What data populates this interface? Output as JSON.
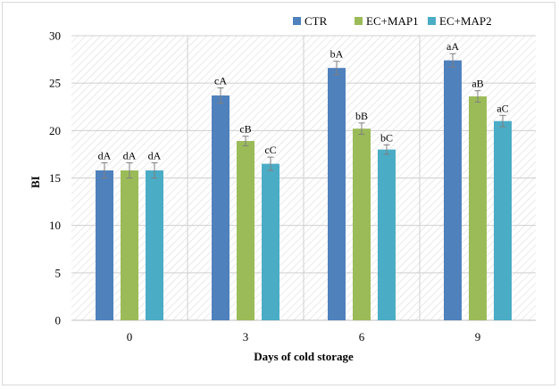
{
  "chart_data": {
    "type": "bar",
    "title": "",
    "xlabel": "Days of cold storage",
    "ylabel": "BI",
    "ylim": [
      0,
      30
    ],
    "yticks": [
      0,
      5,
      10,
      15,
      20,
      25,
      30
    ],
    "grid": true,
    "legend_position": "top-right",
    "categories": [
      "0",
      "3",
      "6",
      "9"
    ],
    "series": [
      {
        "name": "CTR",
        "color": "#4f81bd",
        "values": [
          15.8,
          23.7,
          26.6,
          27.4
        ],
        "errors": [
          0.8,
          0.8,
          0.7,
          0.7
        ],
        "labels": [
          "dA",
          "cA",
          "bA",
          "aA"
        ]
      },
      {
        "name": "EC+MAP1",
        "color": "#9bbb59",
        "values": [
          15.8,
          18.9,
          20.2,
          23.6
        ],
        "errors": [
          0.8,
          0.5,
          0.6,
          0.6
        ],
        "labels": [
          "dA",
          "cB",
          "bB",
          "aB"
        ]
      },
      {
        "name": "EC+MAP2",
        "color": "#4bacc6",
        "values": [
          15.8,
          16.5,
          18.0,
          21.0
        ],
        "errors": [
          0.8,
          0.7,
          0.5,
          0.6
        ],
        "labels": [
          "dA",
          "cC",
          "bC",
          "aC"
        ]
      }
    ]
  }
}
